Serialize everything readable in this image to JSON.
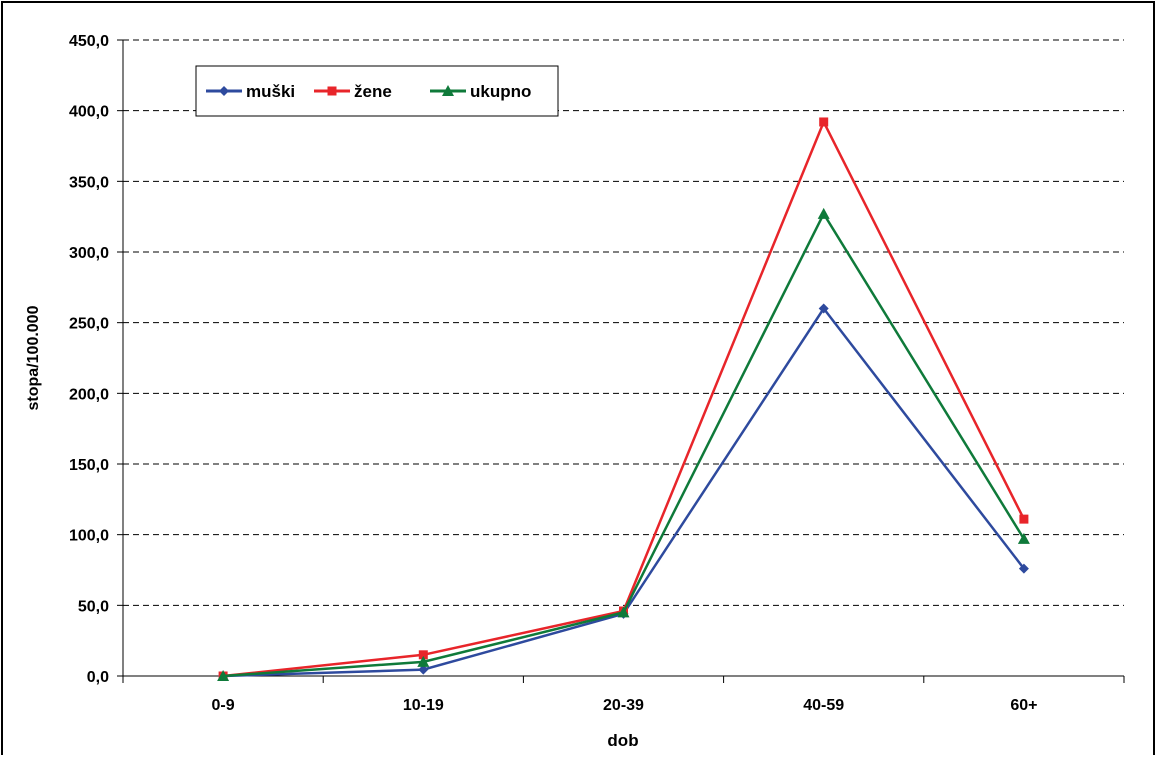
{
  "chart_data": {
    "type": "line",
    "xlabel": "dob",
    "ylabel": "stopa/100.000",
    "categories": [
      "0-9",
      "10-19",
      "20-39",
      "40-59",
      "60+"
    ],
    "ylim": [
      0,
      450
    ],
    "yticks": [
      "0,0",
      "50,0",
      "100,0",
      "150,0",
      "200,0",
      "250,0",
      "300,0",
      "350,0",
      "400,0",
      "450,0"
    ],
    "grid": "horizontal dashed",
    "legend_position": "top-left",
    "series": [
      {
        "name": "muški",
        "color": "#2e4a9e",
        "marker": "diamond",
        "values": [
          0.0,
          4.5,
          44.0,
          260.0,
          76.0
        ]
      },
      {
        "name": "žene",
        "color": "#e8252a",
        "marker": "square",
        "values": [
          0.0,
          15.0,
          46.0,
          392.0,
          111.0
        ]
      },
      {
        "name": "ukupno",
        "color": "#0f7a3a",
        "marker": "triangle",
        "values": [
          0.0,
          10.0,
          45.0,
          327.0,
          97.0
        ]
      }
    ]
  }
}
